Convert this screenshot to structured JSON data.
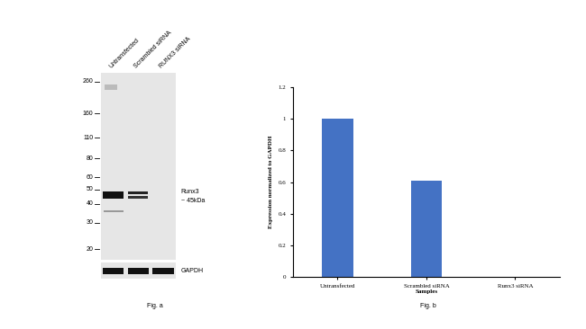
{
  "blot": {
    "lanes": [
      "Untransfected",
      "Scrambled siRNA",
      "RUNX3 siRNA"
    ],
    "markers": [
      260,
      160,
      110,
      80,
      60,
      50,
      40,
      30,
      20
    ],
    "band_label": [
      "Runx3",
      "~ 45kDa"
    ],
    "loading_control": "GAPDH",
    "caption": "Fig. a"
  },
  "chart_data": {
    "type": "bar",
    "categories": [
      "Untransfected",
      "Scrambled siRNA",
      "Runx3 siRNA"
    ],
    "values": [
      1,
      0.61,
      0
    ],
    "color": "#4472c4",
    "xlabel": "Samples",
    "ylabel": "Expression normalized to GAPDH",
    "ylim": [
      0,
      1.2
    ],
    "yticks": [
      0,
      0.2,
      0.4,
      0.6,
      0.8,
      1,
      1.2
    ],
    "grid": false,
    "caption": "Fig. b"
  }
}
